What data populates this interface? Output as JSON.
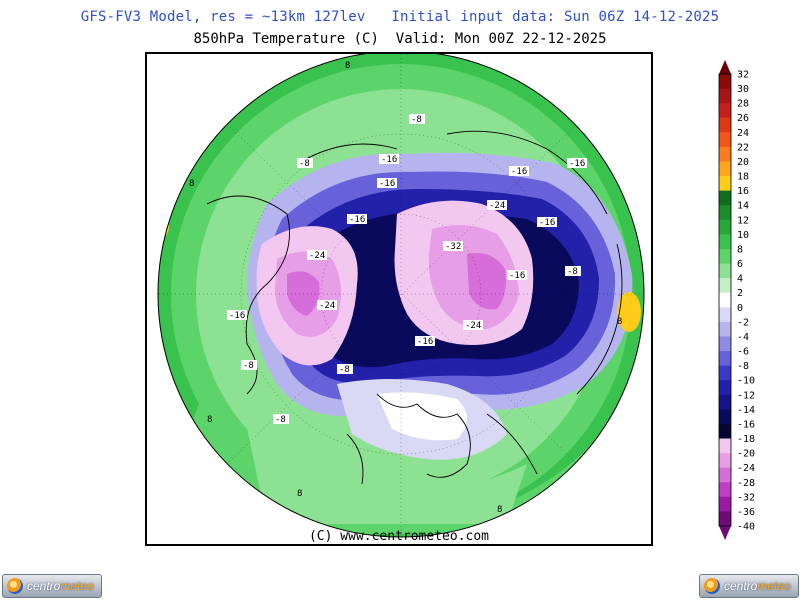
{
  "header": {
    "line1": "GFS-FV3 Model, res = ~13km 127lev   Initial input data: Sun 06Z 14-12-2025",
    "line2": "850hPa Temperature (C)  Valid: Mon 00Z 22-12-2025"
  },
  "map": {
    "copyright": "(C) www.centrometeo.com",
    "contour_labels": [
      "-8",
      "-16",
      "-24",
      "-32",
      "-16",
      "-24",
      "-16",
      "-24",
      "-16",
      "-8",
      "-16",
      "-24",
      "-16",
      "-8",
      "8",
      "8",
      "-8",
      "8",
      "-8",
      "-16",
      "-16",
      "-16",
      "8",
      "-8",
      "8",
      "8",
      "8"
    ]
  },
  "legend": {
    "levels": [
      "32",
      "30",
      "28",
      "26",
      "24",
      "22",
      "20",
      "18",
      "16",
      "14",
      "12",
      "10",
      "8",
      "6",
      "4",
      "2",
      "0",
      "-2",
      "-4",
      "-6",
      "-8",
      "-10",
      "-12",
      "-14",
      "-16",
      "-18",
      "-20",
      "-24",
      "-28",
      "-32",
      "-36",
      "-40"
    ],
    "colors": [
      "#6a0000",
      "#8c0a0a",
      "#a61515",
      "#c41f1f",
      "#dc3a14",
      "#f0551a",
      "#fa7c1e",
      "#ffa51e",
      "#ffcc1a",
      "#0f6e1e",
      "#1a8c2a",
      "#28a83a",
      "#39c24d",
      "#5cd46a",
      "#8ce192",
      "#c4f0c8",
      "#ffffff",
      "#dad9f5",
      "#b6b4ee",
      "#8f8be5",
      "#6762da",
      "#3c38c8",
      "#2320aa",
      "#14138a",
      "#0a0a5c",
      "#050535",
      "#f3c8f0",
      "#e69ee6",
      "#d66ed9",
      "#bf3ec6",
      "#9a1aa3",
      "#6e0a78"
    ]
  },
  "logos": {
    "left_part1": "centro",
    "left_part2": "meteo",
    "right_part1": "centro",
    "right_part2": "meteo"
  }
}
